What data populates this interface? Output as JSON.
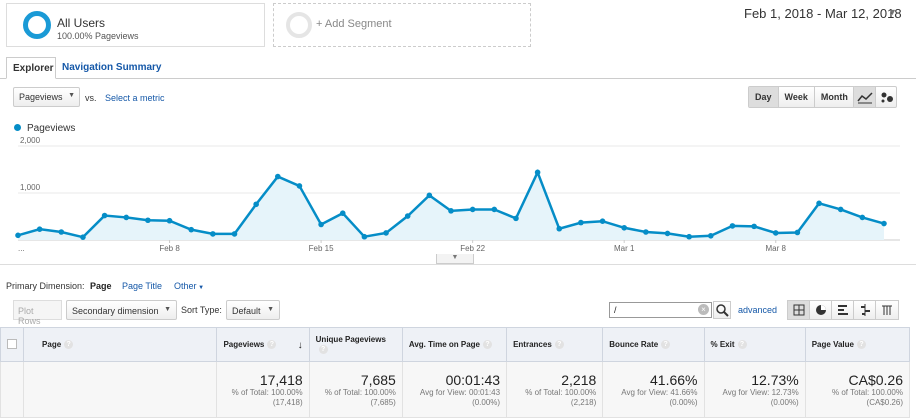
{
  "segments": {
    "active": {
      "title": "All Users",
      "subtitle": "100.00% Pageviews"
    },
    "add_label": "+ Add Segment"
  },
  "date_range": "Feb 1, 2018 - Mar 12, 2018",
  "tabs": [
    {
      "label": "Explorer"
    },
    {
      "label": "Navigation Summary"
    }
  ],
  "metric_selector": {
    "value": "Pageviews",
    "vs": "vs.",
    "select_metric": "Select a metric"
  },
  "period_buttons": [
    "Day",
    "Week",
    "Month"
  ],
  "chart_data": {
    "type": "area",
    "title": "",
    "series": [
      {
        "name": "Pageviews",
        "values": [
          100,
          230,
          170,
          60,
          520,
          480,
          420,
          410,
          220,
          130,
          130,
          760,
          1350,
          1150,
          330,
          570,
          70,
          150,
          510,
          950,
          620,
          650,
          650,
          460,
          1440,
          240,
          370,
          400,
          260,
          170,
          140,
          70,
          90,
          300,
          290,
          150,
          160,
          780,
          650,
          480,
          350
        ]
      }
    ],
    "x_tick_labels": [
      "...",
      "Feb 8",
      "Feb 15",
      "Feb 22",
      "Mar 1",
      "Mar 8"
    ],
    "y_tick_labels": [
      "2,000",
      "1,000"
    ],
    "ylim": [
      0,
      2000
    ],
    "colors": {
      "line": "#058dc7",
      "fill": "#e6f4fa"
    }
  },
  "primary_dimension": {
    "label": "Primary Dimension:",
    "options": [
      "Page",
      "Page Title",
      "Other"
    ]
  },
  "controls": {
    "plot_rows": "Plot Rows",
    "secondary_dimension": "Secondary dimension",
    "sort_label": "Sort Type:",
    "sort_value": "Default",
    "filter_value": "/",
    "advanced": "advanced"
  },
  "table": {
    "columns": [
      "Page",
      "Pageviews",
      "Unique Pageviews",
      "Avg. Time on Page",
      "Entrances",
      "Bounce Rate",
      "% Exit",
      "Page Value"
    ],
    "totals": [
      {
        "value": "17,418",
        "line1": "% of Total: 100.00%",
        "line2": "(17,418)"
      },
      {
        "value": "7,685",
        "line1": "% of Total: 100.00%",
        "line2": "(7,685)"
      },
      {
        "value": "00:01:43",
        "line1": "Avg for View: 00:01:43",
        "line2": "(0.00%)"
      },
      {
        "value": "2,218",
        "line1": "% of Total: 100.00%",
        "line2": "(2,218)"
      },
      {
        "value": "41.66%",
        "line1": "Avg for View: 41.66%",
        "line2": "(0.00%)"
      },
      {
        "value": "12.73%",
        "line1": "Avg for View: 12.73%",
        "line2": "(0.00%)"
      },
      {
        "value": "CA$0.26",
        "line1": "% of Total: 100.00%",
        "line2": "(CA$0.26)"
      }
    ]
  }
}
